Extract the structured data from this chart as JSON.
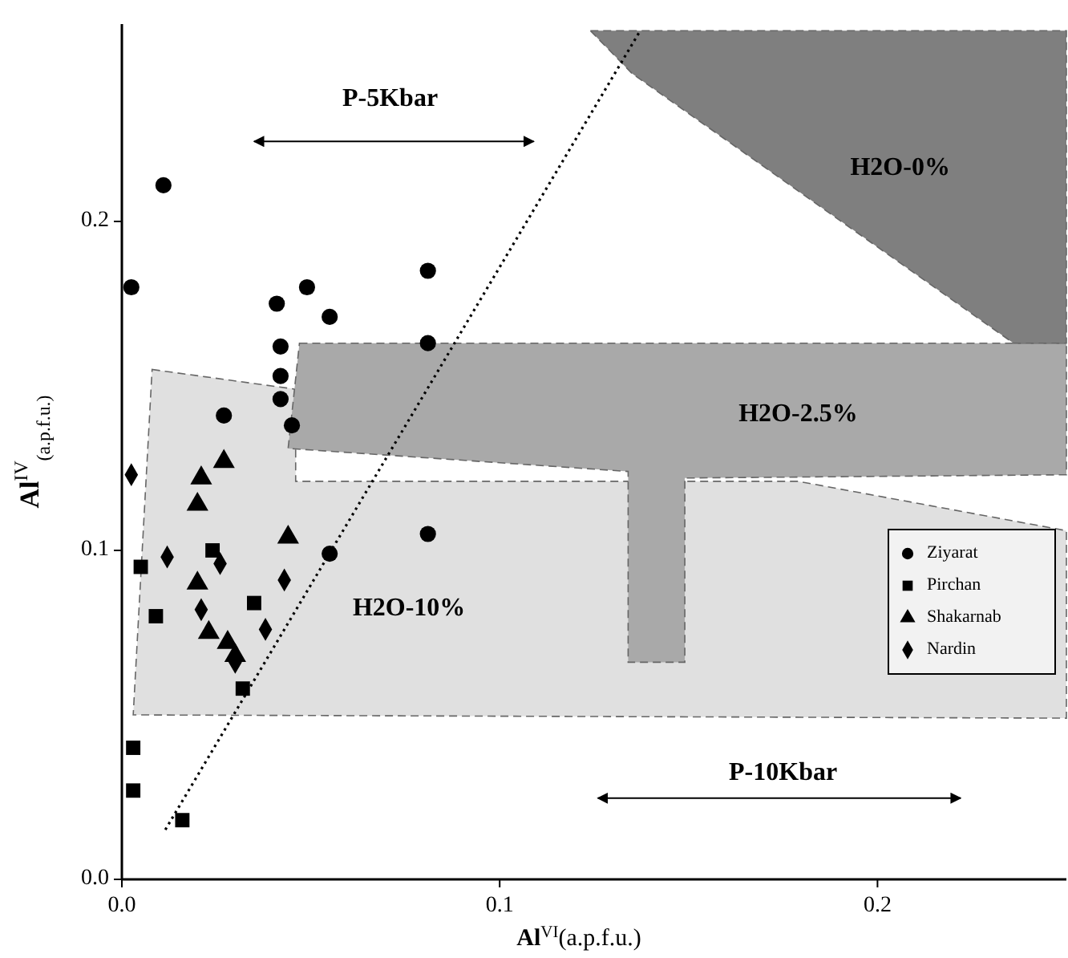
{
  "chart_data": {
    "type": "scatter",
    "xlabel": "Al$^{VI}$(a.p.f.u.)",
    "ylabel": "Al$^{IV}$$_{(a.p.f.u.)}$",
    "xlim": [
      0,
      0.25
    ],
    "ylim": [
      0,
      0.26
    ],
    "xticks": [
      {
        "value": 0,
        "label": "0.0"
      },
      {
        "value": 0.1,
        "label": "0.1"
      },
      {
        "value": 0.2,
        "label": "0.2"
      }
    ],
    "yticks": [
      {
        "value": 0,
        "label": "0.0"
      },
      {
        "value": 0.1,
        "label": "0.1"
      },
      {
        "value": 0.2,
        "label": "0.2"
      }
    ],
    "grid": false,
    "legend": "right",
    "series": [
      {
        "name": "Ziyarat",
        "color": "#000000",
        "marker": "circle",
        "x": [
          0.0025,
          0.011,
          0.041,
          0.049,
          0.055,
          0.081,
          0.081,
          0.042,
          0.042,
          0.042,
          0.045,
          0.027,
          0.055,
          0.081
        ],
        "values": [
          0.18,
          0.211,
          0.175,
          0.18,
          0.171,
          0.185,
          0.163,
          0.162,
          0.153,
          0.146,
          0.138,
          0.141,
          0.099,
          0.105
        ]
      },
      {
        "name": "Pirchan",
        "color": "#000000",
        "marker": "square",
        "x": [
          0.005,
          0.009,
          0.024,
          0.035,
          0.032,
          0.003,
          0.003,
          0.016
        ],
        "values": [
          0.095,
          0.08,
          0.1,
          0.084,
          0.058,
          0.04,
          0.027,
          0.018
        ]
      },
      {
        "name": "Shakarnab",
        "color": "#000000",
        "marker": "triangle",
        "x": [
          0.027,
          0.021,
          0.02,
          0.044,
          0.02,
          0.023,
          0.028,
          0.03
        ],
        "values": [
          0.127,
          0.122,
          0.114,
          0.104,
          0.09,
          0.075,
          0.072,
          0.068
        ]
      },
      {
        "name": "Nardin",
        "color": "#000000",
        "marker": "diamond",
        "x": [
          0.0025,
          0.012,
          0.026,
          0.043,
          0.038,
          0.03,
          0.021
        ],
        "values": [
          0.123,
          0.098,
          0.096,
          0.091,
          0.076,
          0.066,
          0.082
        ]
      },
      {
        "type": "line",
        "color": "#000000",
        "line_style": "dotted",
        "x": [
          0.0115,
          0.137
        ],
        "values": [
          0.0151,
          0.2576
        ]
      }
    ],
    "annotations": [
      "H2O-0%",
      "H2O-2.5%",
      "H2O-10%",
      "P-5Kbar",
      "P-10Kbar"
    ]
  }
}
